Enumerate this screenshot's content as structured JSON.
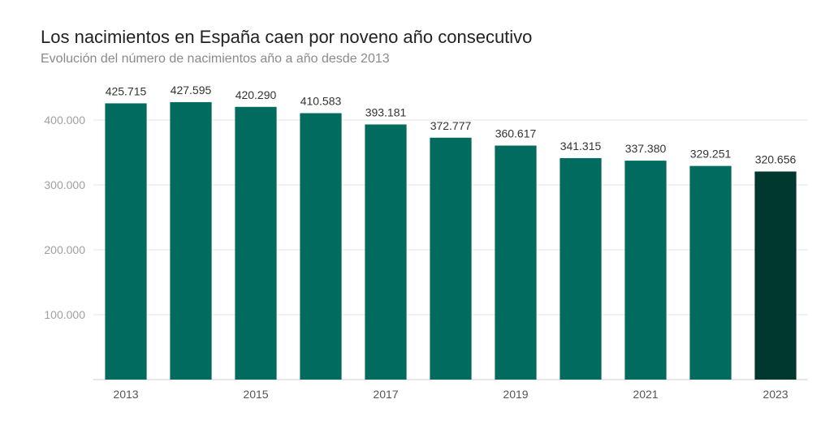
{
  "chart_data": {
    "type": "bar",
    "title": "Los nacimientos en España caen por noveno año consecutivo",
    "subtitle": "Evolución del número de nacimientos año a año desde 2013",
    "categories": [
      "2013",
      "2014",
      "2015",
      "2016",
      "2017",
      "2018",
      "2019",
      "2020",
      "2021",
      "2022",
      "2023"
    ],
    "values": [
      425715,
      427595,
      420290,
      410583,
      393181,
      372777,
      360617,
      341315,
      337380,
      329251,
      320656
    ],
    "data_labels": [
      "425.715",
      "427.595",
      "420.290",
      "410.583",
      "393.181",
      "372.777",
      "360.617",
      "341.315",
      "337.380",
      "329.251",
      "320.656"
    ],
    "x_tick_labels": [
      "2013",
      "",
      "2015",
      "",
      "2017",
      "",
      "2019",
      "",
      "2021",
      "",
      "2023"
    ],
    "y_ticks": [
      100000,
      200000,
      300000,
      400000
    ],
    "y_tick_labels": [
      "100.000",
      "200.000",
      "300.000",
      "400.000"
    ],
    "ylim": [
      0,
      450000
    ],
    "grid": true,
    "colors": {
      "bar": "#006b5e",
      "highlight": "#00372f",
      "grid": "#e6e6e6"
    },
    "highlight_index": 10,
    "xlabel": "",
    "ylabel": ""
  }
}
